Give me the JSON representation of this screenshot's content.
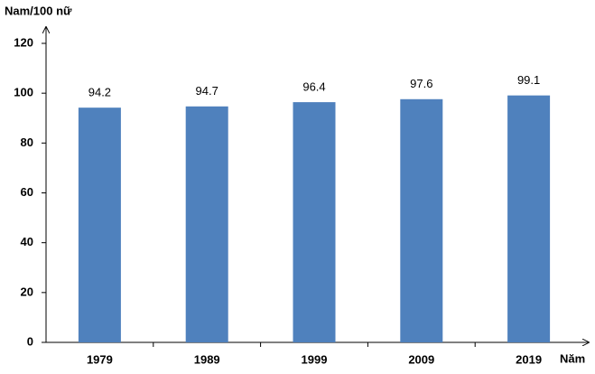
{
  "chart_data": {
    "type": "bar",
    "y_label": "Nam/100 nữ",
    "x_label": "Năm",
    "categories": [
      "1979",
      "1989",
      "1999",
      "2009",
      "2019"
    ],
    "values": [
      94.2,
      94.7,
      96.4,
      97.6,
      99.1
    ],
    "color": "#4f81bd",
    "ylim": [
      0,
      120
    ],
    "yticks": [
      0,
      20,
      40,
      60,
      80,
      100,
      120
    ],
    "grid": false
  }
}
